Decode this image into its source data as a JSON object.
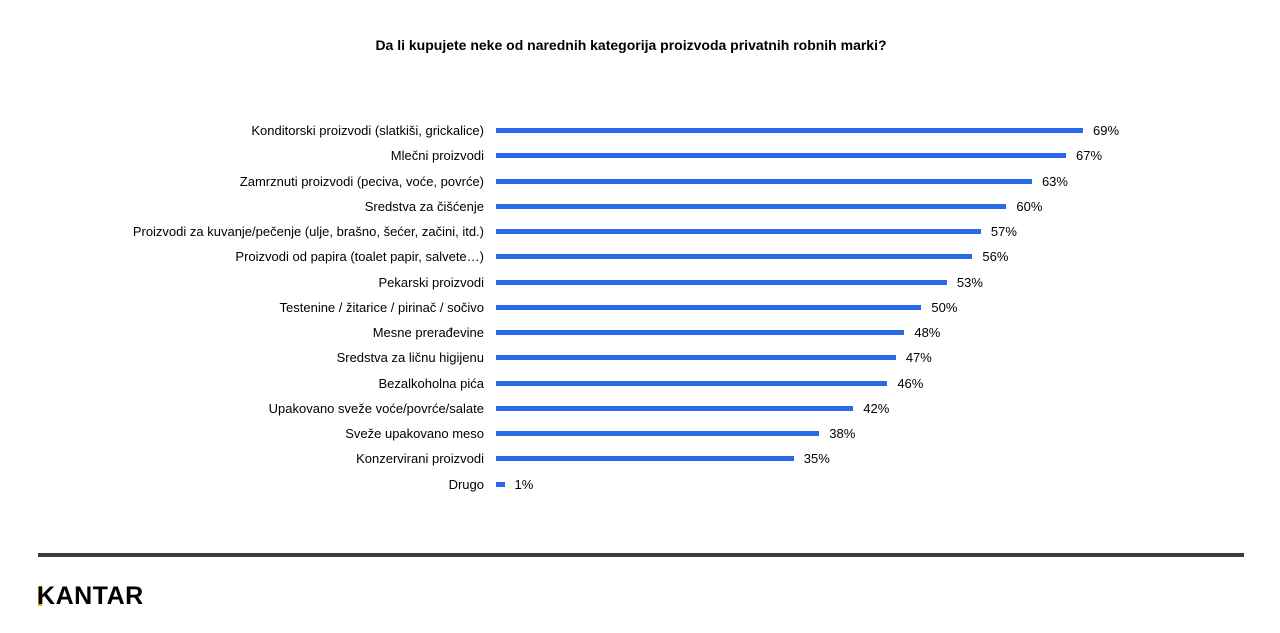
{
  "chart_data": {
    "type": "bar",
    "orientation": "horizontal",
    "title": "Da li kupujete neke od narednih kategorija proizvoda  privatnih robnih marki?",
    "xlabel": "",
    "ylabel": "",
    "xlim": [
      0,
      100
    ],
    "grid": false,
    "value_suffix": "%",
    "color": "#2a6ae8",
    "categories": [
      "Konditorski proizvodi (slatkiši, grickalice)",
      "Mlečni proizvodi",
      "Zamrznuti proizvodi (peciva, voće, povrće)",
      "Sredstva za čišćenje",
      "Proizvodi za kuvanje/pečenje (ulje, brašno, šećer, začini, itd.)",
      "Proizvodi od papira (toalet papir, salvete…)",
      "Pekarski proizvodi",
      "Testenine / žitarice / pirinač / sočivo",
      "Mesne prerađevine",
      "Sredstva za ličnu higijenu",
      "Bezalkoholna pića",
      "Upakovano sveže voće/povrće/salate",
      "Sveže upakovano meso",
      "Konzervirani proizvodi",
      "Drugo"
    ],
    "values": [
      69,
      67,
      63,
      60,
      57,
      56,
      53,
      50,
      48,
      47,
      46,
      42,
      38,
      35,
      1
    ],
    "value_labels": [
      "69%",
      "67%",
      "63%",
      "60%",
      "57%",
      "56%",
      "53%",
      "50%",
      "48%",
      "47%",
      "46%",
      "42%",
      "38%",
      "35%",
      "1%"
    ]
  },
  "brand": {
    "logo_text": "ANTAR",
    "logo_first_letter": "K",
    "accent_color": "#f0b400"
  }
}
